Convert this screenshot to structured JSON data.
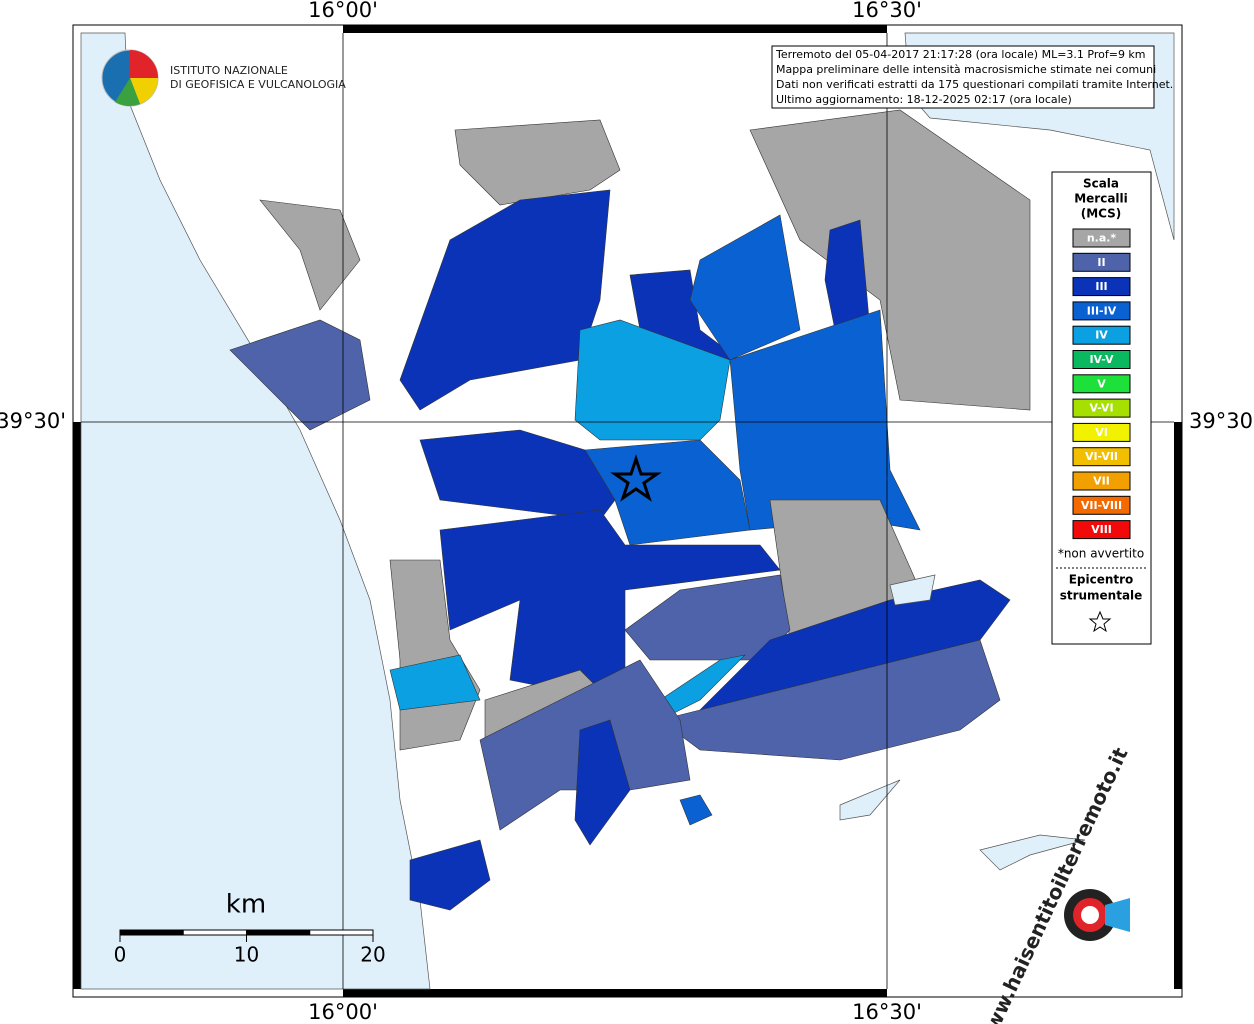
{
  "map": {
    "graticule": {
      "top": [
        "16°00'",
        "16°30'"
      ],
      "bottom": [
        "16°00'",
        "16°30'"
      ],
      "left": [
        "39°30'"
      ],
      "right": [
        "39°30'"
      ]
    },
    "logo": [
      "ISTITUTO NAZIONALE",
      "DI GEOFISICA E VULCANOLOGIA"
    ],
    "info": [
      "Terremoto del 05-04-2017 21:17:28 (ora locale) ML=3.1 Prof=9 km",
      "Mappa preliminare delle intensità macrosismiche stimate nei comuni",
      "Dati non verificati estratti da 175 questionari compilati tramite Internet.",
      "Ultimo aggiornamento: 18-12-2025 02:17 (ora locale)"
    ],
    "legend": {
      "title": [
        "Scala",
        "Mercalli",
        "(MCS)"
      ],
      "classes": [
        {
          "label": "n.a.*",
          "color": "#a6a6a6"
        },
        {
          "label": "II",
          "color": "#4f63ab"
        },
        {
          "label": "III",
          "color": "#0a33b8"
        },
        {
          "label": "III-IV",
          "color": "#0a62d2"
        },
        {
          "label": "IV",
          "color": "#0ba0e2"
        },
        {
          "label": "IV-V",
          "color": "#0ab860"
        },
        {
          "label": "V",
          "color": "#1ee03a"
        },
        {
          "label": "V-VI",
          "color": "#a6e000"
        },
        {
          "label": "VI",
          "color": "#f2f200"
        },
        {
          "label": "VI-VII",
          "color": "#f2be00"
        },
        {
          "label": "VII",
          "color": "#f2a000"
        },
        {
          "label": "VII-VIII",
          "color": "#f26a00"
        },
        {
          "label": "VIII",
          "color": "#f20a0a"
        }
      ],
      "note": "*non avvertito",
      "epicenter": [
        "Epicentro",
        "strumentale"
      ]
    },
    "scale_bar": {
      "unit": "km",
      "ticks": [
        0,
        10,
        20
      ]
    },
    "watermark": "www.haisentitoilterremoto.it"
  }
}
